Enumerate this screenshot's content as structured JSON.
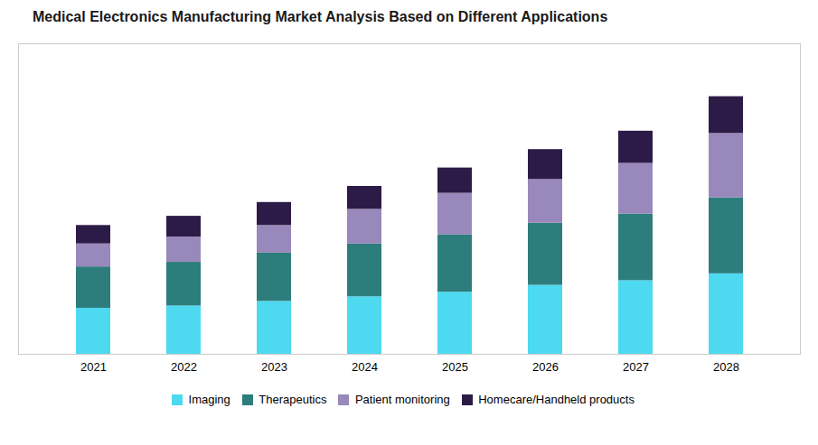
{
  "chart_data": {
    "type": "bar",
    "stacked": true,
    "title": "Medical Electronics Manufacturing Market Analysis Based on Different Applications",
    "categories": [
      "2021",
      "2022",
      "2023",
      "2024",
      "2025",
      "2026",
      "2027",
      "2028"
    ],
    "series": [
      {
        "name": "Imaging",
        "color": "#4DD9F0",
        "values": [
          20,
          21,
          23,
          25,
          27,
          30,
          32,
          35
        ]
      },
      {
        "name": "Therapeutics",
        "color": "#2D7D7D",
        "values": [
          18,
          19,
          21,
          23,
          25,
          27,
          29,
          33
        ]
      },
      {
        "name": "Patient monitoring",
        "color": "#9988BB",
        "values": [
          10,
          11,
          12,
          15,
          18,
          19,
          22,
          28
        ]
      },
      {
        "name": "Homecare/Handheld products",
        "color": "#2D1B47",
        "values": [
          8,
          9,
          10,
          10,
          11,
          13,
          14,
          16
        ]
      }
    ],
    "ylim": [
      0,
      135
    ],
    "grid": false,
    "tick_labels": "x",
    "legend": "bottom"
  }
}
